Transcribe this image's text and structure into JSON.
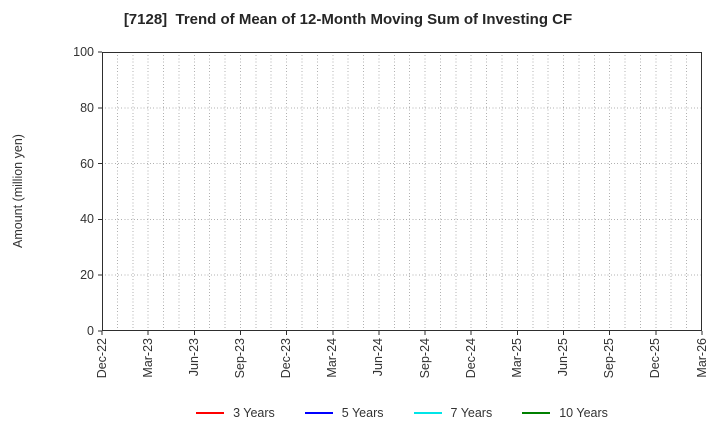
{
  "chart_data": {
    "type": "line",
    "title": "[7128]  Trend of Mean of 12-Month Moving Sum of Investing CF",
    "xlabel": "",
    "ylabel": "Amount (million yen)",
    "ylim": [
      0,
      100
    ],
    "y_ticks": [
      0,
      20,
      40,
      60,
      80,
      100
    ],
    "x_tick_labels": [
      "Dec-22",
      "Mar-23",
      "Jun-23",
      "Sep-23",
      "Dec-23",
      "Mar-24",
      "Jun-24",
      "Sep-24",
      "Dec-24",
      "Mar-25",
      "Jun-25",
      "Sep-25",
      "Dec-25",
      "Mar-26"
    ],
    "x_months_between_labels": 3,
    "x_tick_rotation": 90,
    "grid": true,
    "grid_style": "dotted",
    "x_minor_gridlines": "monthly",
    "legend_position": "bottom-center",
    "plot_is_empty": true,
    "series": [
      {
        "name": "3 Years",
        "color": "#ff0000",
        "values": []
      },
      {
        "name": "5 Years",
        "color": "#0000ff",
        "values": []
      },
      {
        "name": "7 Years",
        "color": "#00e5e8",
        "values": []
      },
      {
        "name": "10 Years",
        "color": "#008000",
        "values": []
      }
    ],
    "colors": {
      "grid": "#b0b0b0",
      "axis_border": "#2e2e2e",
      "text": "#333333"
    }
  }
}
